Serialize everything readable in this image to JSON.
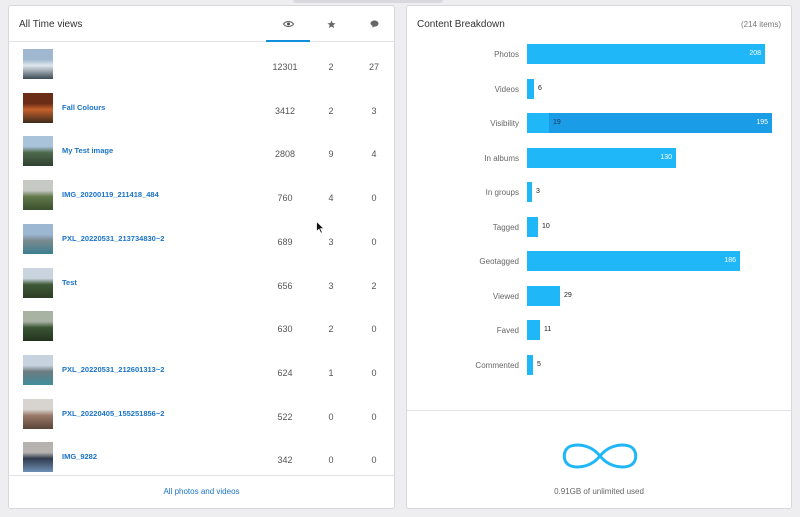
{
  "left": {
    "title": "All Time views",
    "icons": {
      "views": "eye-icon",
      "faves": "star-icon",
      "comments": "comment-icon"
    },
    "rows": [
      {
        "title": "",
        "views": "12301",
        "faves": "2",
        "comments": "27"
      },
      {
        "title": "Fall Colours",
        "views": "3412",
        "faves": "2",
        "comments": "3"
      },
      {
        "title": "My Test image",
        "views": "2808",
        "faves": "9",
        "comments": "4"
      },
      {
        "title": "IMG_20200119_211418_484",
        "views": "760",
        "faves": "4",
        "comments": "0"
      },
      {
        "title": "PXL_20220531_213734830~2",
        "views": "689",
        "faves": "3",
        "comments": "0"
      },
      {
        "title": "Test",
        "views": "656",
        "faves": "3",
        "comments": "2"
      },
      {
        "title": "",
        "views": "630",
        "faves": "2",
        "comments": "0"
      },
      {
        "title": "PXL_20220531_212601313~2",
        "views": "624",
        "faves": "1",
        "comments": "0"
      },
      {
        "title": "PXL_20220405_155251856~2",
        "views": "522",
        "faves": "0",
        "comments": "0"
      },
      {
        "title": "IMG_9282",
        "views": "342",
        "faves": "0",
        "comments": "0"
      }
    ],
    "footer_link": "All photos and videos"
  },
  "right": {
    "title": "Content Breakdown",
    "count": "(214 items)",
    "max": 214,
    "bars": [
      {
        "label": "Photos",
        "value": 208,
        "display": "208"
      },
      {
        "label": "Videos",
        "value": 6,
        "display": "6"
      },
      {
        "label": "Visibility",
        "value": 214,
        "display": "195",
        "secondary": 19,
        "secondary_display": "19"
      },
      {
        "label": "In albums",
        "value": 130,
        "display": "130"
      },
      {
        "label": "In groups",
        "value": 3,
        "display": "3"
      },
      {
        "label": "Tagged",
        "value": 10,
        "display": "10"
      },
      {
        "label": "Geotagged",
        "value": 186,
        "display": "186"
      },
      {
        "label": "Viewed",
        "value": 29,
        "display": "29"
      },
      {
        "label": "Faved",
        "value": 11,
        "display": "11"
      },
      {
        "label": "Commented",
        "value": 5,
        "display": "5"
      }
    ],
    "usage_icon": "infinity-icon",
    "usage_text": "0.91GB of unlimited used"
  },
  "colors": {
    "accent": "#128fdc",
    "link": "#1a73c8",
    "bar": "#1fb7f7",
    "bar_dark": "#1a9de6"
  }
}
